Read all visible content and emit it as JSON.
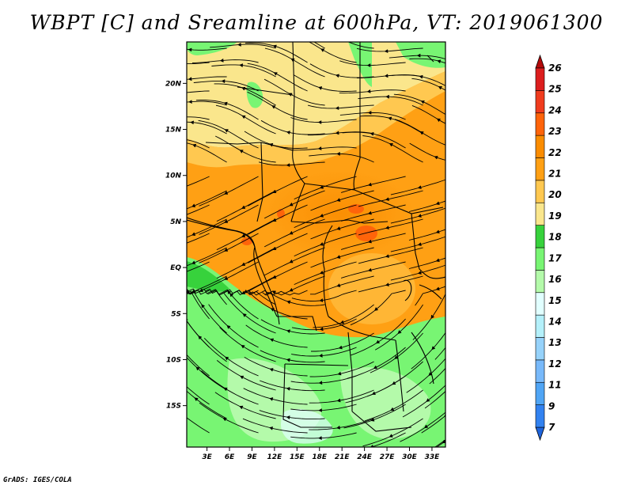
{
  "title": "WBPT [C] and Sreamline at 600hPa, VT: 2019061300",
  "credit": "GrADS: IGES/COLA",
  "map": {
    "lat_ticks": [
      "20N",
      "15N",
      "10N",
      "5N",
      "EQ",
      "5S",
      "10S",
      "15S"
    ],
    "lon_ticks": [
      "3E",
      "6E",
      "9E",
      "12E",
      "15E",
      "18E",
      "21E",
      "24E",
      "27E",
      "30E",
      "33E"
    ],
    "lat_range": [
      -19.5,
      24.5
    ],
    "lon_range": [
      0.3,
      34.8
    ]
  },
  "colorbar": {
    "labels": [
      "7",
      "9",
      "11",
      "12",
      "13",
      "14",
      "15",
      "16",
      "17",
      "18",
      "19",
      "20",
      "21",
      "22",
      "23",
      "24",
      "25",
      "26"
    ],
    "colors": [
      "#1e64dc",
      "#3282f0",
      "#50a5f5",
      "#78b9fa",
      "#96d2fa",
      "#b4f0fa",
      "#e1ffff",
      "#b4faaa",
      "#78f573",
      "#37d23c",
      "#fae68c",
      "#ffc850",
      "#ffa014",
      "#fa8c00",
      "#ff640a",
      "#f03c1e",
      "#dc1e1e",
      "#b40a0a"
    ]
  }
}
